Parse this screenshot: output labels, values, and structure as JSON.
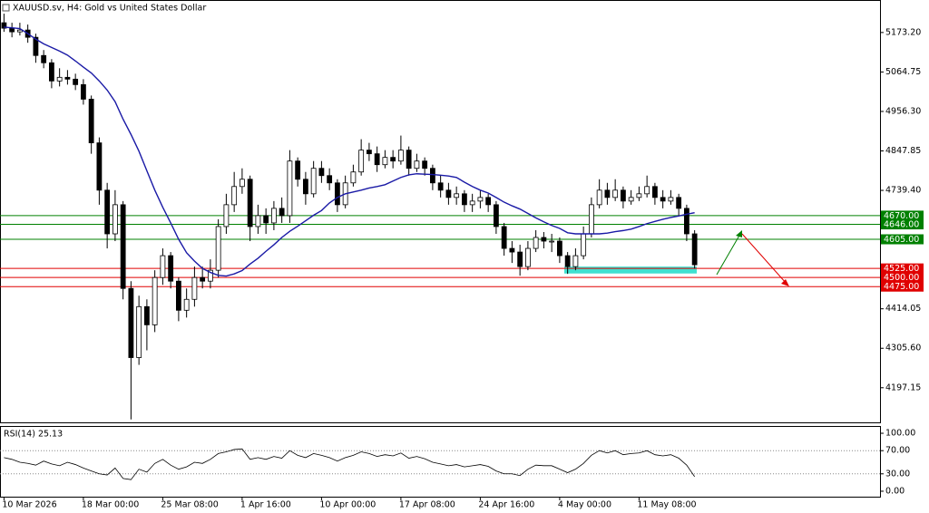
{
  "chart_data": [
    {
      "type": "candlestick",
      "title": "XAUUSD.sv, H4:  Gold vs United States Dollar",
      "categories": [
        "10 Mar 2026",
        null,
        null,
        null,
        null,
        null,
        null,
        null,
        null,
        null,
        "18 Mar 00:00",
        null,
        null,
        null,
        null,
        null,
        null,
        null,
        null,
        null,
        "25 Mar 08:00",
        null,
        null,
        null,
        null,
        null,
        null,
        null,
        null,
        null,
        "1 Apr 16:00",
        null,
        null,
        null,
        null,
        null,
        null,
        null,
        null,
        null,
        "10 Apr 00:00",
        null,
        null,
        null,
        null,
        null,
        null,
        null,
        null,
        null,
        "17 Apr 08:00",
        null,
        null,
        null,
        null,
        null,
        null,
        null,
        null,
        null,
        "24 Apr 16:00",
        null,
        null,
        null,
        null,
        null,
        null,
        null,
        null,
        null,
        "4 May 00:00",
        null,
        null,
        null,
        null,
        null,
        null,
        null,
        null,
        null,
        "11 May 08:00",
        null,
        null,
        null,
        null,
        null,
        null,
        null
      ],
      "open": [
        5200,
        5185,
        5175,
        5180,
        5160,
        5110,
        5090,
        5040,
        5050,
        5045,
        5030,
        4990,
        4870,
        4740,
        4620,
        4700,
        4470,
        4280,
        4420,
        4370,
        4500,
        4560,
        4490,
        4410,
        4440,
        4500,
        4490,
        4520,
        4640,
        4700,
        4750,
        4770,
        4640,
        4670,
        4650,
        4690,
        4670,
        4820,
        4770,
        4730,
        4800,
        4780,
        4760,
        4700,
        4760,
        4790,
        4850,
        4840,
        4810,
        4830,
        4820,
        4850,
        4800,
        4820,
        4800,
        4760,
        4740,
        4720,
        4730,
        4700,
        4710,
        4720,
        4700,
        4640,
        4580,
        4570,
        4530,
        4580,
        4610,
        4600,
        4600,
        4560,
        4530,
        4560,
        4620,
        4700,
        4740,
        4720,
        4740,
        4710,
        4720,
        4730,
        4750,
        4720,
        4710,
        4720,
        4690,
        4620
      ],
      "high": [
        5225,
        5200,
        5200,
        5195,
        5170,
        5125,
        5100,
        5075,
        5070,
        5060,
        5045,
        5000,
        4885,
        4760,
        4740,
        4710,
        4490,
        4450,
        4440,
        4520,
        4580,
        4570,
        4500,
        4470,
        4530,
        4530,
        4550,
        4660,
        4730,
        4790,
        4800,
        4780,
        4700,
        4690,
        4710,
        4720,
        4850,
        4830,
        4790,
        4820,
        4820,
        4800,
        4770,
        4780,
        4810,
        4880,
        4870,
        4860,
        4850,
        4850,
        4890,
        4860,
        4840,
        4830,
        4810,
        4780,
        4760,
        4750,
        4740,
        4730,
        4740,
        4730,
        4710,
        4650,
        4600,
        4590,
        4600,
        4630,
        4625,
        4620,
        4610,
        4570,
        4580,
        4640,
        4720,
        4770,
        4760,
        4770,
        4750,
        4740,
        4750,
        4780,
        4760,
        4740,
        4740,
        4730,
        4700,
        4630
      ],
      "low": [
        5175,
        5160,
        5165,
        5145,
        5090,
        5075,
        5020,
        5025,
        5030,
        5015,
        4975,
        4840,
        4700,
        4580,
        4600,
        4440,
        4110,
        4260,
        4300,
        4350,
        4480,
        4470,
        4380,
        4390,
        4420,
        4470,
        4470,
        4500,
        4620,
        4680,
        4730,
        4600,
        4620,
        4620,
        4630,
        4650,
        4650,
        4750,
        4700,
        4720,
        4760,
        4740,
        4680,
        4690,
        4750,
        4780,
        4820,
        4790,
        4800,
        4800,
        4810,
        4780,
        4790,
        4780,
        4740,
        4720,
        4700,
        4700,
        4680,
        4680,
        4690,
        4680,
        4620,
        4560,
        4540,
        4505,
        4520,
        4570,
        4580,
        4570,
        4540,
        4510,
        4520,
        4550,
        4610,
        4690,
        4700,
        4710,
        4690,
        4700,
        4710,
        4720,
        4700,
        4690,
        4700,
        4670,
        4600,
        4525
      ],
      "close": [
        5185,
        5175,
        5180,
        5160,
        5110,
        5090,
        5040,
        5050,
        5045,
        5030,
        4990,
        4870,
        4740,
        4620,
        4700,
        4470,
        4280,
        4420,
        4370,
        4500,
        4560,
        4490,
        4410,
        4440,
        4500,
        4490,
        4520,
        4640,
        4700,
        4750,
        4770,
        4640,
        4670,
        4650,
        4690,
        4670,
        4820,
        4770,
        4730,
        4800,
        4780,
        4760,
        4700,
        4760,
        4790,
        4850,
        4840,
        4810,
        4830,
        4820,
        4850,
        4800,
        4820,
        4800,
        4760,
        4740,
        4720,
        4730,
        4700,
        4710,
        4720,
        4700,
        4640,
        4580,
        4570,
        4530,
        4580,
        4610,
        4600,
        4600,
        4560,
        4530,
        4560,
        4620,
        4700,
        4740,
        4720,
        4740,
        4710,
        4720,
        4730,
        4750,
        4720,
        4710,
        4720,
        4690,
        4620,
        4535
      ],
      "moving_average": {
        "color": "#1a1aa6",
        "values": [
          5188,
          5186,
          5184,
          5170,
          5155,
          5142,
          5132,
          5122,
          5111,
          5095,
          5078,
          5062,
          5040,
          5015,
          4983,
          4935,
          4893,
          4847,
          4793,
          4740,
          4693,
          4650,
          4605,
          4568,
          4545,
          4525,
          4514,
          4506,
          4504,
          4510,
          4519,
          4537,
          4553,
          4572,
          4590,
          4610,
          4627,
          4641,
          4656,
          4671,
          4684,
          4705,
          4720,
          4730,
          4735,
          4740,
          4746,
          4750,
          4755,
          4765,
          4775,
          4782,
          4785,
          4784,
          4783,
          4781,
          4779,
          4775,
          4762,
          4750,
          4740,
          4732,
          4720,
          4707,
          4697,
          4688,
          4676,
          4664,
          4653,
          4643,
          4635,
          4623,
          4620,
          4620,
          4620,
          4620,
          4622,
          4626,
          4629,
          4633,
          4640,
          4648,
          4654,
          4660,
          4665,
          4669,
          4674,
          4678
        ]
      },
      "levels": [
        {
          "value": 4670,
          "label": "4670.00",
          "color": "#008000"
        },
        {
          "value": 4646,
          "label": "4646.00",
          "color": "#008000"
        },
        {
          "value": 4605,
          "label": "4605.00",
          "color": "#008000"
        },
        {
          "value": 4525,
          "label": "4525.00",
          "color": "#e00000"
        },
        {
          "value": 4500,
          "label": "4500.00",
          "color": "#e00000"
        },
        {
          "value": 4475,
          "label": "4475.00",
          "color": "#e00000"
        }
      ],
      "zone": {
        "low": 4511,
        "high": 4530,
        "color": "#40e0d0"
      },
      "up_color": "#ffffff",
      "down_color": "#000000",
      "ylim": [
        4102,
        5260
      ],
      "yticks": [
        {
          "value": 5173.2,
          "label": "5173.20"
        },
        {
          "value": 5064.75,
          "label": "5064.75"
        },
        {
          "value": 4956.3,
          "label": "4956.30"
        },
        {
          "value": 4847.85,
          "label": "4847.85"
        },
        {
          "value": 4739.4,
          "label": "4739.40"
        },
        {
          "value": 4414.05,
          "label": "4414.05"
        },
        {
          "value": 4305.6,
          "label": "4305.60"
        },
        {
          "value": 4197.15,
          "label": "4197.15"
        }
      ]
    },
    {
      "type": "line",
      "title": "RSI(14) 25.13",
      "color": "#000000",
      "values": [
        58,
        55,
        50,
        48,
        45,
        52,
        47,
        44,
        50,
        46,
        40,
        35,
        30,
        28,
        40,
        22,
        20,
        38,
        33,
        48,
        55,
        45,
        38,
        42,
        50,
        48,
        55,
        65,
        68,
        72,
        73,
        55,
        58,
        55,
        60,
        57,
        70,
        62,
        58,
        65,
        62,
        58,
        52,
        58,
        62,
        68,
        65,
        60,
        63,
        61,
        66,
        57,
        60,
        56,
        50,
        47,
        44,
        46,
        42,
        44,
        46,
        43,
        35,
        30,
        30,
        27,
        38,
        45,
        44,
        44,
        38,
        32,
        38,
        48,
        62,
        70,
        66,
        70,
        63,
        65,
        66,
        70,
        63,
        61,
        63,
        57,
        45,
        25.13
      ],
      "ylim": [
        -11,
        111
      ],
      "yticks": [
        {
          "value": 100,
          "label": "100.00"
        },
        {
          "value": 70,
          "label": "70.00"
        },
        {
          "value": 30,
          "label": "30.00"
        },
        {
          "value": 0,
          "label": "0.00"
        }
      ],
      "grid_levels": [
        70,
        30
      ]
    }
  ]
}
